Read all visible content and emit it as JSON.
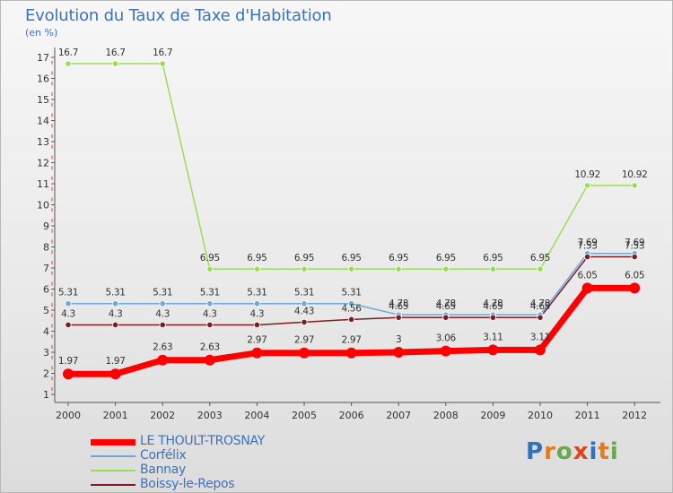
{
  "title": "Evolution du Taux de Taxe d'Habitation",
  "unit": "(en %)",
  "logo": {
    "letters": [
      "P",
      "r",
      "o",
      "x",
      "i",
      "t",
      "i"
    ],
    "colors": [
      "#2f73c0",
      "#e57b1f",
      "#6aa84f",
      "#e0431f",
      "#2f73c0",
      "#e57b1f",
      "#6aa84f"
    ]
  },
  "chart_data": {
    "type": "line",
    "title": "Evolution du Taux de Taxe d'Habitation",
    "ylabel": "(en %)",
    "xlabel": "",
    "ylim": [
      1,
      17
    ],
    "yticks": [
      1,
      2,
      3,
      4,
      5,
      6,
      7,
      8,
      9,
      10,
      11,
      12,
      13,
      14,
      15,
      16,
      17
    ],
    "x": [
      "2000",
      "2001",
      "2002",
      "2003",
      "2004",
      "2005",
      "2006",
      "2007",
      "2008",
      "2009",
      "2010",
      "2011",
      "2012"
    ],
    "grid": false,
    "legend_position": "bottom-left",
    "series": [
      {
        "name": "LE THOULT-TROSNAY",
        "color": "#ff0000",
        "values": [
          1.97,
          1.97,
          2.63,
          2.63,
          2.97,
          2.97,
          2.97,
          3,
          3.06,
          3.11,
          3.11,
          6.05,
          6.05
        ],
        "labels": [
          "1.97",
          "1.97",
          "2.63",
          "2.63",
          "2.97",
          "2.97",
          "2.97",
          "3",
          "3.06",
          "3.11",
          "3.11",
          "6.05",
          "6.05"
        ]
      },
      {
        "name": "Corfélix",
        "color": "#6fa8d6",
        "values": [
          5.31,
          5.31,
          5.31,
          5.31,
          5.31,
          5.31,
          5.31,
          4.78,
          4.78,
          4.78,
          4.78,
          7.69,
          7.69
        ],
        "labels": [
          "5.31",
          "5.31",
          "5.31",
          "5.31",
          "5.31",
          "5.31",
          "5.31",
          "4.78",
          "4.78",
          "4.78",
          "4.78",
          "7.69",
          "7.69"
        ]
      },
      {
        "name": "Bannay",
        "color": "#99dd55",
        "values": [
          16.7,
          16.7,
          16.7,
          6.95,
          6.95,
          6.95,
          6.95,
          6.95,
          6.95,
          6.95,
          6.95,
          10.92,
          10.92
        ],
        "labels": [
          "16.7",
          "16.7",
          "16.7",
          "6.95",
          "6.95",
          "6.95",
          "6.95",
          "6.95",
          "6.95",
          "6.95",
          "6.95",
          "10.92",
          "10.92"
        ]
      },
      {
        "name": "Boissy-le-Repos",
        "color": "#7a1e22",
        "values": [
          4.3,
          4.3,
          4.3,
          4.3,
          4.3,
          4.43,
          4.56,
          4.65,
          4.65,
          4.65,
          4.65,
          7.53,
          7.53
        ],
        "labels": [
          "4.3",
          "4.3",
          "4.3",
          "4.3",
          "4.3",
          "4.43",
          "4.56",
          "4.65",
          "4.65",
          "4.65",
          "4.65",
          "7.53",
          "7.53"
        ]
      }
    ]
  }
}
